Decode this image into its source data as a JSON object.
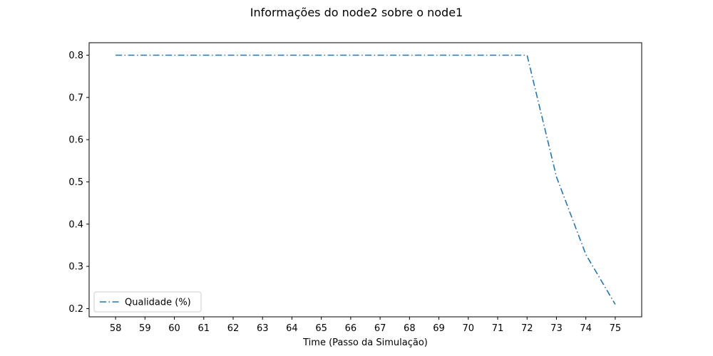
{
  "chart_data": {
    "type": "line",
    "title": "Informações do node2 sobre o node1",
    "xlabel": "Time (Passo da Simulação)",
    "ylabel": "",
    "x": [
      58,
      59,
      60,
      61,
      62,
      63,
      64,
      65,
      66,
      67,
      68,
      69,
      70,
      71,
      72,
      73,
      74,
      75
    ],
    "series": [
      {
        "name": "Qualidade (%)",
        "color": "#1f77b4",
        "line_style": "dashdot",
        "values": [
          0.8,
          0.8,
          0.8,
          0.8,
          0.8,
          0.8,
          0.8,
          0.8,
          0.8,
          0.8,
          0.8,
          0.8,
          0.8,
          0.8,
          0.8,
          0.512,
          0.328,
          0.21
        ]
      }
    ],
    "xticks": [
      "58",
      "59",
      "60",
      "61",
      "62",
      "63",
      "64",
      "65",
      "66",
      "67",
      "68",
      "69",
      "70",
      "71",
      "72",
      "73",
      "74",
      "75"
    ],
    "yticks": [
      "0.2",
      "0.3",
      "0.4",
      "0.5",
      "0.6",
      "0.7",
      "0.8"
    ],
    "xlim": [
      57.1,
      75.9
    ],
    "ylim": [
      0.1805,
      0.8295
    ],
    "grid": false,
    "legend_position": "lower-left"
  }
}
